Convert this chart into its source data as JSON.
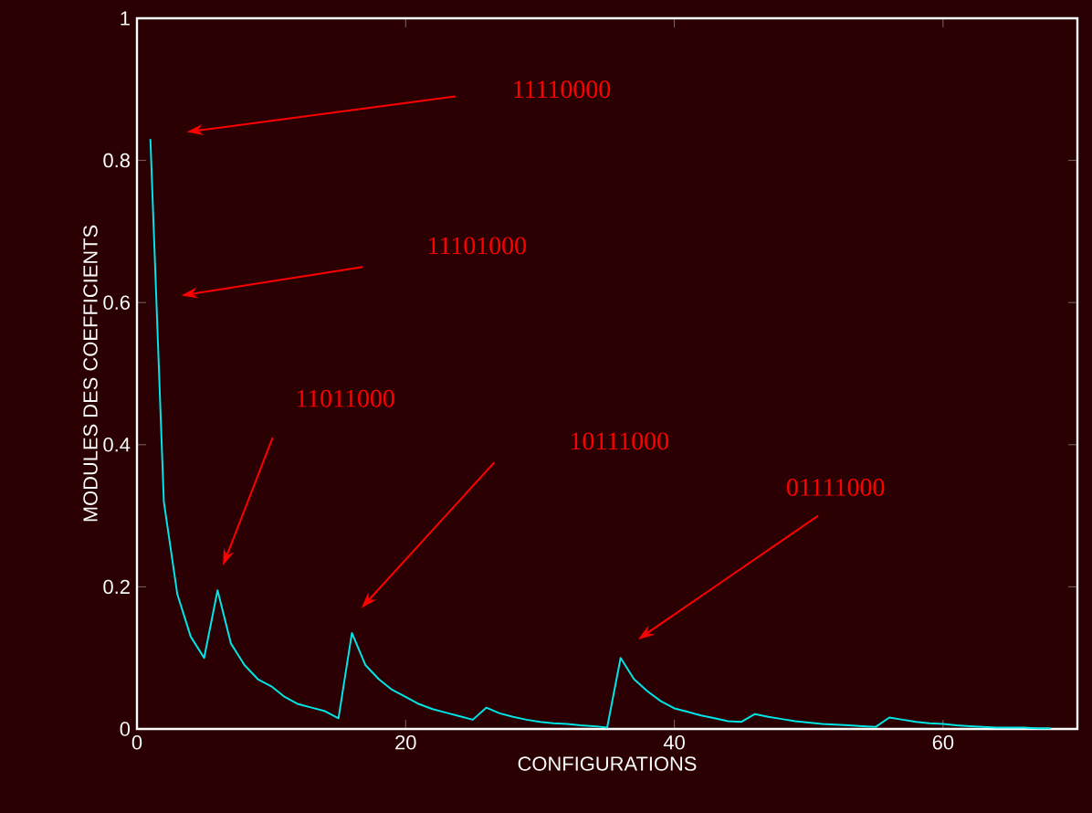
{
  "chart_data": {
    "type": "line",
    "xlabel": "CONFIGURATIONS",
    "ylabel": "MODULES DES COEFFICIENTS",
    "xlim": [
      0,
      70
    ],
    "ylim": [
      0,
      1
    ],
    "xticks": [
      0,
      20,
      40,
      60
    ],
    "yticks": [
      0,
      0.2,
      0.4,
      0.6,
      0.8,
      1
    ],
    "series": [
      {
        "color": "#00e5e5",
        "x": [
          1,
          2,
          3,
          4,
          5,
          6,
          7,
          8,
          9,
          10,
          11,
          12,
          13,
          14,
          15,
          16,
          17,
          18,
          19,
          20,
          21,
          22,
          23,
          24,
          25,
          26,
          27,
          28,
          29,
          30,
          31,
          32,
          33,
          34,
          35,
          36,
          37,
          38,
          39,
          40,
          41,
          42,
          43,
          44,
          45,
          46,
          47,
          48,
          49,
          50,
          51,
          52,
          53,
          54,
          55,
          56,
          57,
          58,
          59,
          60,
          61,
          62,
          63,
          64,
          65,
          66,
          67,
          68
        ],
        "values": [
          0.83,
          0.32,
          0.19,
          0.13,
          0.1,
          0.195,
          0.12,
          0.09,
          0.07,
          0.06,
          0.045,
          0.035,
          0.03,
          0.025,
          0.015,
          0.135,
          0.09,
          0.07,
          0.055,
          0.045,
          0.035,
          0.028,
          0.023,
          0.018,
          0.013,
          0.03,
          0.022,
          0.017,
          0.013,
          0.01,
          0.008,
          0.007,
          0.005,
          0.004,
          0.002,
          0.1,
          0.07,
          0.053,
          0.039,
          0.029,
          0.024,
          0.019,
          0.015,
          0.011,
          0.01,
          0.021,
          0.017,
          0.014,
          0.011,
          0.009,
          0.007,
          0.006,
          0.005,
          0.004,
          0.003,
          0.016,
          0.013,
          0.01,
          0.008,
          0.007,
          0.005,
          0.004,
          0.003,
          0.002,
          0.002,
          0.002,
          0.001,
          0.001
        ]
      }
    ],
    "annotations": [
      "11110000",
      "11101000",
      "11011000",
      "10111000",
      "01111000"
    ]
  }
}
